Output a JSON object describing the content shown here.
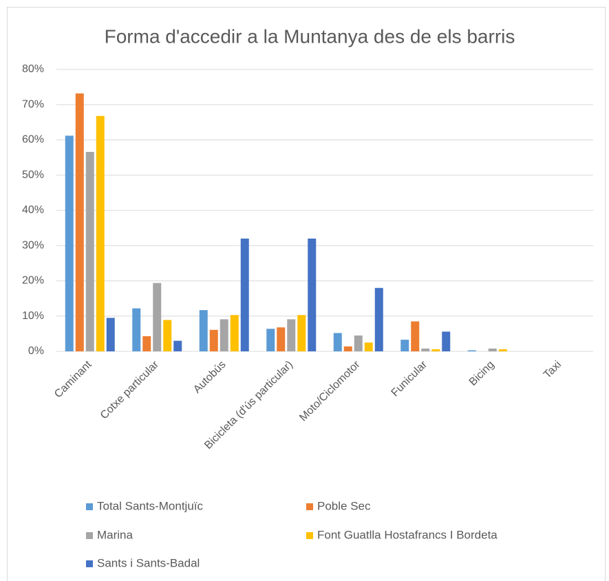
{
  "chart_data": {
    "type": "bar",
    "title": "Forma d'accedir a la Muntanya des de els barris",
    "categories": [
      "Caminant",
      "Cotxe particular",
      "Autobús",
      "Bicicleta (d'ús particular)",
      "Moto/Ciclomotor",
      "Funicular",
      "Bicing",
      "Taxi"
    ],
    "series": [
      {
        "name": "Total Sants-Montjuïc",
        "color": "#5b9bd5",
        "values": [
          61.2,
          12.2,
          11.7,
          6.4,
          5.2,
          3.3,
          0.3,
          0
        ]
      },
      {
        "name": "Poble Sec",
        "color": "#ed7d31",
        "values": [
          73.2,
          4.3,
          6.1,
          6.8,
          1.4,
          8.5,
          0,
          0
        ]
      },
      {
        "name": "Marina",
        "color": "#a5a5a5",
        "values": [
          56.6,
          19.4,
          9.1,
          9.1,
          4.5,
          0.8,
          0.8,
          0
        ]
      },
      {
        "name": "Font Guatlla Hostafrancs I Bordeta",
        "color": "#ffc000",
        "values": [
          66.8,
          8.9,
          10.3,
          10.3,
          2.5,
          0.6,
          0.6,
          0
        ]
      },
      {
        "name": "Sants i Sants-Badal",
        "color": "#4472c4",
        "values": [
          9.5,
          3.0,
          32.0,
          32.0,
          18.0,
          5.6,
          0,
          0
        ]
      }
    ],
    "ylim": [
      0,
      80
    ],
    "yticks": [
      {
        "value": 0,
        "label": "0%"
      },
      {
        "value": 10,
        "label": "10%"
      },
      {
        "value": 20,
        "label": "20%"
      },
      {
        "value": 30,
        "label": "30%"
      },
      {
        "value": 40,
        "label": "40%"
      },
      {
        "value": 50,
        "label": "50%"
      },
      {
        "value": 60,
        "label": "60%"
      },
      {
        "value": 70,
        "label": "70%"
      },
      {
        "value": 80,
        "label": "80%"
      }
    ],
    "grid": true,
    "legend": "bottom"
  }
}
